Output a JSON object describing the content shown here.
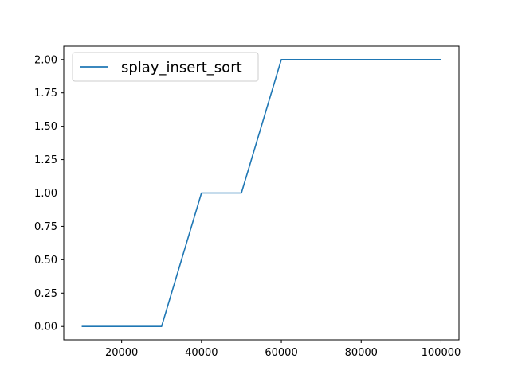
{
  "chart_data": {
    "type": "line",
    "title": "",
    "xlabel": "",
    "ylabel": "",
    "xlim": [
      5500,
      104500
    ],
    "ylim": [
      -0.1,
      2.1
    ],
    "x_ticks": [
      20000,
      40000,
      60000,
      80000,
      100000
    ],
    "x_tick_labels": [
      "20000",
      "40000",
      "60000",
      "80000",
      "100000"
    ],
    "y_ticks": [
      0.0,
      0.25,
      0.5,
      0.75,
      1.0,
      1.25,
      1.5,
      1.75,
      2.0
    ],
    "y_tick_labels": [
      "0.00",
      "0.25",
      "0.50",
      "0.75",
      "1.00",
      "1.25",
      "1.50",
      "1.75",
      "2.00"
    ],
    "grid": false,
    "legend_position": "upper left",
    "series": [
      {
        "name": "splay_insert_sort",
        "color": "#1f77b4",
        "x": [
          10000,
          20000,
          30000,
          40000,
          50000,
          60000,
          70000,
          80000,
          90000,
          100000
        ],
        "y": [
          0,
          0,
          0,
          1,
          1,
          2,
          2,
          2,
          2,
          2
        ]
      }
    ]
  }
}
